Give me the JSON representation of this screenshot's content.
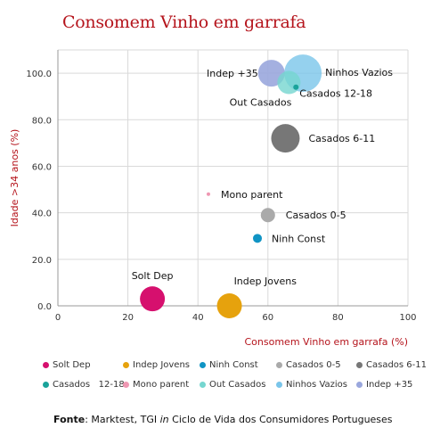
{
  "chart_data": {
    "type": "scatter",
    "title": "Consomem Vinho em garrafa",
    "xlabel": "Consomem Vinho em garrafa (%)",
    "ylabel": "Idade >34 anos (%)",
    "xlim": [
      0,
      100
    ],
    "ylim": [
      0,
      110
    ],
    "x_ticks": [
      "0",
      "20",
      "40",
      "60",
      "80",
      "100"
    ],
    "y_ticks": [
      "0.0",
      "20.0",
      "40.0",
      "60.0",
      "80.0",
      "100.0"
    ],
    "grid": true,
    "legend_position": "bottom",
    "series": [
      {
        "name": "Solt Dep",
        "label": "Solt Dep",
        "x": 27,
        "y": 3,
        "size": 14,
        "color": "#d6106e"
      },
      {
        "name": "Indep Jovens",
        "label": "Indep Jovens",
        "x": 49,
        "y": 0,
        "size": 14,
        "color": "#e6a20d"
      },
      {
        "name": "Ninh Const",
        "label": "Ninh Const",
        "x": 57,
        "y": 29,
        "size": 5,
        "color": "#1094c4"
      },
      {
        "name": "Casados 0-5",
        "label": "Casados 0-5",
        "x": 60,
        "y": 39,
        "size": 8,
        "color": "#aaaaaa"
      },
      {
        "name": "Casados 6-11",
        "label": "Casados 6-11",
        "x": 65,
        "y": 72,
        "size": 16,
        "color": "#777777"
      },
      {
        "name": "Casados   12-18",
        "label": "Casados   12-18",
        "x": 68,
        "y": 94,
        "size": 3,
        "color": "#1aa39a"
      },
      {
        "name": "Mono parent",
        "label": "Mono parent",
        "x": 43,
        "y": 48,
        "size": 2,
        "color": "#ef97b2"
      },
      {
        "name": "Out Casados",
        "label": "Out Casados",
        "x": 66,
        "y": 96,
        "size": 13,
        "color": "#76d6d0",
        "opacity": 0.8
      },
      {
        "name": "Ninhos Vazios",
        "label": "Ninhos Vazios",
        "x": 70,
        "y": 100,
        "size": 21,
        "color": "#7ac5ea",
        "opacity": 0.8
      },
      {
        "name": "Indep +35",
        "label": "Indep +35",
        "x": 61,
        "y": 100,
        "size": 15,
        "color": "#9aa7dd",
        "opacity": 0.9
      }
    ]
  },
  "legend_rows": [
    [
      "Solt Dep",
      "Indep Jovens",
      "Ninh Const",
      "Casados 0-5",
      "Casados 6-11"
    ],
    [
      "Casados   12-18",
      "Mono parent",
      "Out Casados",
      "Ninhos Vazios",
      "Indep +35"
    ]
  ],
  "source": {
    "prefix": "Fonte",
    "text_a": ": Marktest, TGI ",
    "italic": "in",
    "text_b": " Ciclo de Vida dos Consumidores Portugueses"
  }
}
